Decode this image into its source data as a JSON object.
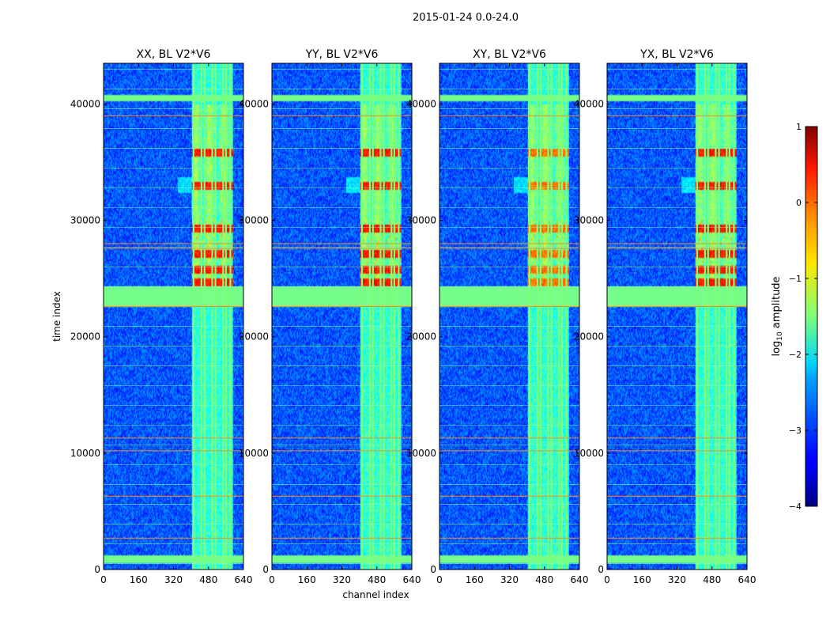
{
  "figure": {
    "suptitle": "2015-01-24 0.0-24.0"
  },
  "chart_data": [
    {
      "type": "heatmap",
      "title": "XX, BL V2*V6",
      "xlabel": "",
      "ylabel": "time index",
      "xlim": [
        0,
        640
      ],
      "ylim": [
        0,
        43500
      ],
      "xticks": [
        "0",
        "160",
        "320",
        "480",
        "640"
      ],
      "yticks": [
        "0",
        "10000",
        "20000",
        "30000",
        "40000"
      ]
    },
    {
      "type": "heatmap",
      "title": "YY, BL V2*V6",
      "xlabel": "channel index",
      "ylabel": "",
      "xlim": [
        0,
        640
      ],
      "ylim": [
        0,
        43500
      ],
      "xticks": [
        "0",
        "160",
        "320",
        "480",
        "640"
      ],
      "yticks": [
        "0",
        "10000",
        "20000",
        "30000",
        "40000"
      ]
    },
    {
      "type": "heatmap",
      "title": "XY, BL V2*V6",
      "xlabel": "",
      "ylabel": "",
      "xlim": [
        0,
        640
      ],
      "ylim": [
        0,
        43500
      ],
      "xticks": [
        "0",
        "160",
        "320",
        "480",
        "640"
      ],
      "yticks": [
        "0",
        "10000",
        "20000",
        "30000",
        "40000"
      ]
    },
    {
      "type": "heatmap",
      "title": "YX, BL V2*V6",
      "xlabel": "",
      "ylabel": "",
      "xlim": [
        0,
        640
      ],
      "ylim": [
        0,
        43500
      ],
      "xticks": [
        "0",
        "160",
        "320",
        "480",
        "640"
      ],
      "yticks": [
        "0",
        "10000",
        "20000",
        "30000",
        "40000"
      ]
    }
  ],
  "features": {
    "band_x": [
      405,
      590
    ],
    "band_lines_x": [
      412,
      448,
      462,
      497,
      512,
      547,
      560,
      580
    ],
    "green_bands_y": [
      [
        22600,
        24400
      ],
      [
        500,
        1200
      ],
      [
        40300,
        40800
      ]
    ],
    "orange_lines_y": [
      2700,
      6300,
      10200,
      11300,
      22600,
      27600,
      28000,
      39000
    ],
    "hot_rows_y": [
      33000,
      35800,
      29300,
      27100,
      25800,
      24700
    ],
    "strong_pols": [
      "XX",
      "YY",
      "YX"
    ]
  },
  "colorbar": {
    "label": "log",
    "label_sub": "10",
    "label_rest": " amplitude",
    "range": [
      -4,
      1
    ],
    "ticks": [
      {
        "value": 1,
        "label": "1"
      },
      {
        "value": 0,
        "label": "0"
      },
      {
        "value": -1,
        "label": "−1"
      },
      {
        "value": -2,
        "label": "−2"
      },
      {
        "value": -3,
        "label": "−3"
      },
      {
        "value": -4,
        "label": "−4"
      }
    ],
    "colormap": "jet"
  }
}
